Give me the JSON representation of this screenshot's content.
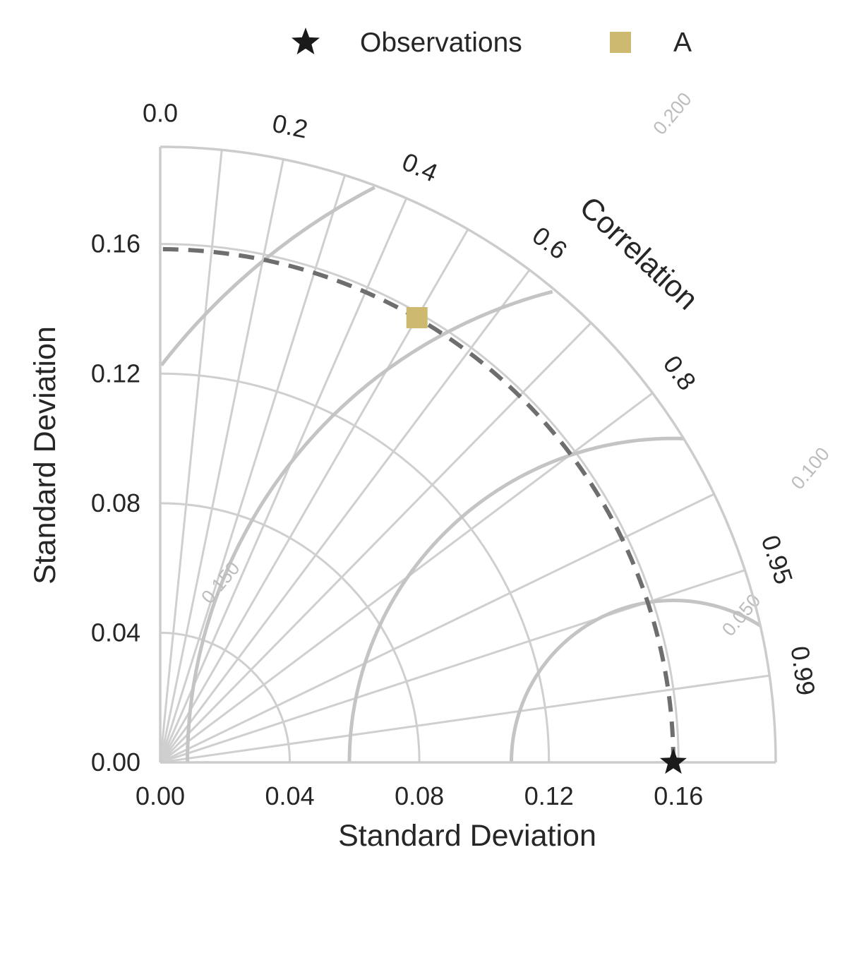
{
  "chart_data": {
    "type": "taylor",
    "legend": {
      "placement": "top",
      "entries": [
        {
          "label": "Observations",
          "marker": "star",
          "color": "#1a1a1a"
        },
        {
          "label": "A",
          "marker": "square",
          "color": "#cdb970"
        }
      ]
    },
    "xlabel": "Standard Deviation",
    "ylabel": "Standard Deviation",
    "angular_label": "Correlation",
    "std_max": 0.19,
    "std_ticks": [
      0.0,
      0.04,
      0.08,
      0.12,
      0.16
    ],
    "std_tick_labels": [
      "0.00",
      "0.04",
      "0.08",
      "0.12",
      "0.16"
    ],
    "corr_ticks": [
      0.0,
      0.2,
      0.4,
      0.6,
      0.8,
      0.95,
      0.99
    ],
    "corr_tick_labels": [
      "0.0",
      "0.2",
      "0.4",
      "0.6",
      "0.8",
      "0.95",
      "0.99"
    ],
    "corr_grid": [
      0.1,
      0.2,
      0.3,
      0.4,
      0.5,
      0.6,
      0.7,
      0.8,
      0.9,
      0.95,
      0.99
    ],
    "std_grid": [
      0.04,
      0.08,
      0.12,
      0.16
    ],
    "rms_contours": [
      0.05,
      0.1,
      0.15,
      0.2
    ],
    "rms_labels": [
      "0.050",
      "0.100",
      "0.150",
      "0.200"
    ],
    "reference": {
      "name": "Observations",
      "std": 0.1584
    },
    "points": [
      {
        "name": "A",
        "std": 0.1585,
        "corr": 0.5
      }
    ],
    "colors": {
      "grid": "#cfcfcf",
      "rms": "#c4c4c4",
      "reference_arc": "#6e6e6e",
      "model": "#cdb970",
      "observation": "#1a1a1a"
    }
  }
}
